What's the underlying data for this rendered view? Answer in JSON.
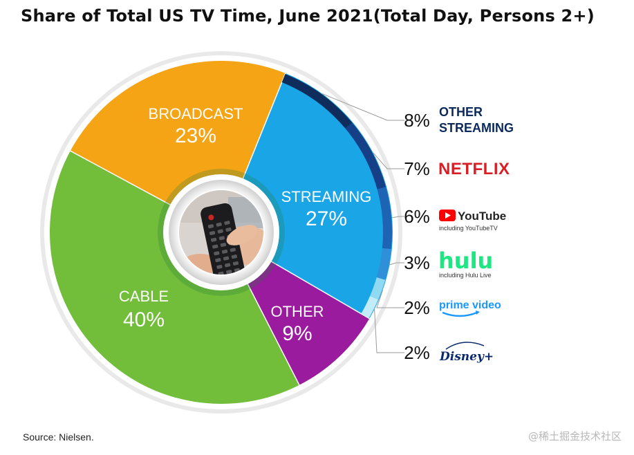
{
  "title": "Share of Total US TV Time, June 2021(Total Day, Persons 2+)",
  "source": "Source: Nielsen.",
  "watermark": "@稀土掘金技术社区",
  "chart_data": {
    "type": "pie",
    "title": "Share of Total US TV Time, June 2021(Total Day, Persons 2+)",
    "categories": [
      "STREAMING",
      "OTHER",
      "CABLE",
      "BROADCAST"
    ],
    "values": [
      27,
      9,
      40,
      23
    ],
    "value_labels": [
      "27%",
      "9%",
      "40%",
      "23%"
    ],
    "colors": [
      "#1aa5e6",
      "#9b1b9e",
      "#72bd3a",
      "#f4a414"
    ],
    "streaming_breakdown": [
      {
        "name": "OTHER STREAMING",
        "value": 8,
        "label": "8%",
        "logo_text": "OTHER STREAMING",
        "color": "#0e2c5c"
      },
      {
        "name": "NETFLIX",
        "value": 7,
        "label": "7%",
        "logo_text": "NETFLIX",
        "color": "#153f86"
      },
      {
        "name": "YouTube",
        "value": 6,
        "label": "6%",
        "logo_text": "YouTube",
        "sub": "including YouTubeTV",
        "color": "#1d64b4"
      },
      {
        "name": "hulu",
        "value": 3,
        "label": "3%",
        "logo_text": "hulu",
        "sub": "including Hulu Live",
        "color": "#2f8fd8"
      },
      {
        "name": "prime video",
        "value": 2,
        "label": "2%",
        "logo_text": "prime video",
        "color": "#8fdaf2"
      },
      {
        "name": "Disney+",
        "value": 2,
        "label": "2%",
        "logo_text": "Disney+",
        "color": "#c2ecf9"
      }
    ]
  },
  "colors": {
    "streaming": "#1aa5e6",
    "other": "#9b1b9e",
    "cable": "#72bd3a",
    "broadcast": "#f4a414",
    "ring_dark": "#0e2c5c",
    "netflix": "#d81f26",
    "youtube": "#ff0000",
    "hulu": "#1ce783",
    "prime": "#1a98ff",
    "disney": "#0b2a6b"
  }
}
